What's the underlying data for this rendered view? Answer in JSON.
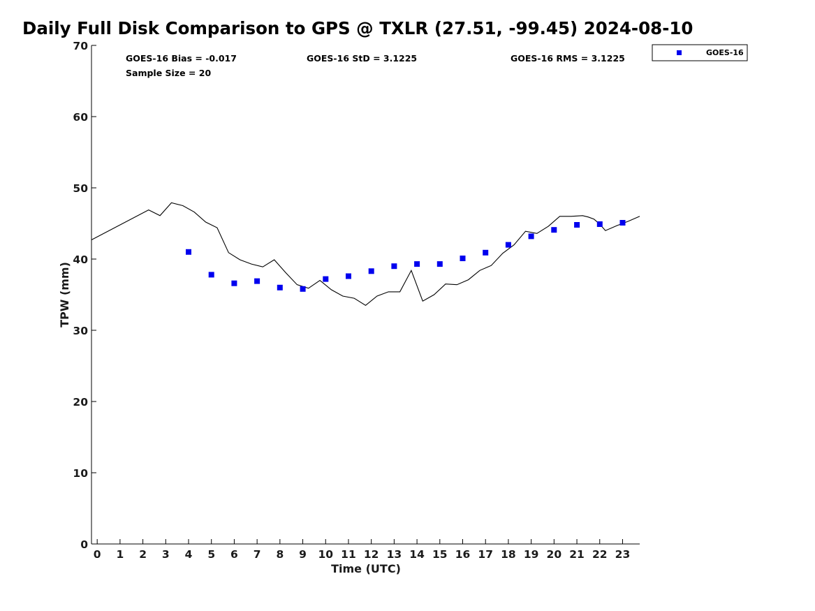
{
  "chart_data": {
    "type": "scatter",
    "title": "Daily Full Disk Comparison to GPS @ TXLR (27.51, -99.45) 2024-08-10",
    "xlabel": "Time (UTC)",
    "ylabel": "TPW (mm)",
    "xlim": [
      -0.25,
      23.75
    ],
    "ylim": [
      0,
      70
    ],
    "x_ticks": [
      "0",
      "1",
      "2",
      "3",
      "4",
      "5",
      "6",
      "7",
      "8",
      "9",
      "10",
      "11",
      "12",
      "13",
      "14",
      "15",
      "16",
      "17",
      "18",
      "19",
      "20",
      "21",
      "22",
      "23"
    ],
    "y_ticks": [
      "0",
      "10",
      "20",
      "30",
      "40",
      "50",
      "60",
      "70"
    ],
    "grid": false,
    "legend_position": "top-right",
    "stats": {
      "bias": "GOES-16 Bias = -0.017",
      "std": "GOES-16 StD = 3.1225",
      "rms": "GOES-16 RMS = 3.1225",
      "sample": "Sample Size = 20"
    },
    "colors": {
      "goes": "#0000ee",
      "gps": "#000000"
    },
    "series": [
      {
        "name": "GOES-16",
        "style": "square-markers",
        "x": [
          4,
          5,
          6,
          7,
          8,
          9,
          10,
          11,
          12,
          13,
          14,
          15,
          16,
          17,
          18,
          19,
          20,
          21,
          22,
          23
        ],
        "y": [
          41.0,
          37.8,
          36.6,
          36.9,
          36.0,
          35.8,
          37.2,
          37.6,
          38.3,
          39.0,
          39.3,
          39.3,
          40.1,
          40.9,
          42.0,
          43.2,
          44.1,
          44.8,
          44.9,
          45.1
        ]
      },
      {
        "style": "line",
        "x": [
          -0.25,
          2.25,
          2.75,
          3.25,
          3.75,
          4.25,
          4.75,
          5.25,
          5.75,
          6.25,
          6.75,
          7.25,
          7.75,
          8.25,
          8.75,
          9.25,
          9.75,
          10.25,
          10.75,
          11.25,
          11.75,
          12.25,
          12.75,
          13.25,
          13.75,
          14.25,
          14.75,
          15.25,
          15.75,
          16.25,
          16.75,
          17.25,
          17.75,
          18.25,
          18.75,
          19.25,
          19.75,
          20.25,
          20.75,
          21.25,
          21.5,
          21.75,
          22.0,
          22.25,
          22.75,
          23.25,
          23.75
        ],
        "y": [
          42.7,
          46.9,
          46.1,
          47.9,
          47.5,
          46.6,
          45.2,
          44.4,
          40.9,
          39.9,
          39.3,
          38.9,
          39.9,
          38.1,
          36.4,
          35.9,
          37.0,
          35.7,
          34.8,
          34.5,
          33.5,
          34.8,
          35.4,
          35.4,
          38.4,
          34.1,
          35.0,
          36.5,
          36.4,
          37.1,
          38.4,
          39.1,
          40.8,
          42.0,
          43.9,
          43.6,
          44.6,
          46.0,
          46.0,
          46.1,
          45.9,
          45.6,
          44.9,
          44.0,
          44.7,
          45.3,
          46.0
        ]
      }
    ]
  }
}
